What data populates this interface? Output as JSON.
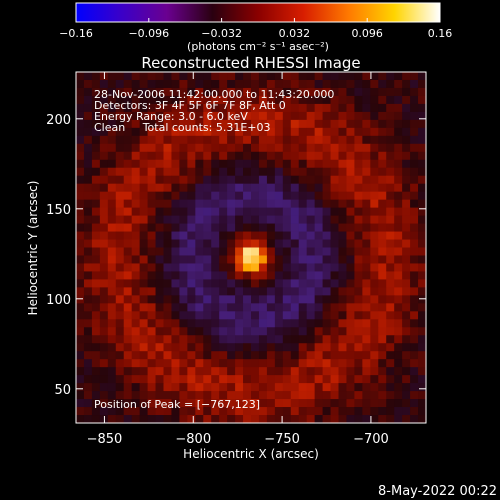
{
  "colorbar": {
    "tick_labels": [
      "−0.16",
      "−0.096",
      "−0.032",
      "0.032",
      "0.096",
      "0.16"
    ],
    "tick_values": [
      -0.16,
      -0.096,
      -0.032,
      0.032,
      0.096,
      0.16
    ],
    "range": [
      -0.16,
      0.16
    ],
    "units_label": "(photons cm⁻² s⁻¹ asec⁻²)",
    "colors": [
      "#0000ff",
      "#3b00c8",
      "#6a0090",
      "#2a0010",
      "#8a0000",
      "#d81e00",
      "#ff7a00",
      "#ffd400",
      "#ffffff"
    ]
  },
  "chart_data": {
    "type": "heatmap",
    "title": "Reconstructed RHESSI Image",
    "xlabel": "Heliocentric X (arcsec)",
    "ylabel": "Heliocentric Y (arcsec)",
    "xlim": [
      -866,
      -669
    ],
    "ylim": [
      31,
      226
    ],
    "x_ticks": [
      -850,
      -800,
      -750,
      -700
    ],
    "x_tick_labels": [
      "−850",
      "−800",
      "−750",
      "−700"
    ],
    "y_ticks": [
      50,
      100,
      150,
      200
    ],
    "y_tick_labels": [
      "50",
      "100",
      "150",
      "200"
    ],
    "annotations": [
      "28-Nov-2006 11:42:00.000 to 11:43:20.000",
      "Detectors: 3F 4F 5F 6F 7F 8F, Att 0",
      "Energy Range: 3.0 - 6.0 keV",
      "Clean     Total counts: 5.31E+03"
    ],
    "peak_label": "Position of Peak = [−767,123]",
    "peak": [
      -767,
      123
    ]
  },
  "footer": {
    "date": "8-May-2022 00:22"
  }
}
